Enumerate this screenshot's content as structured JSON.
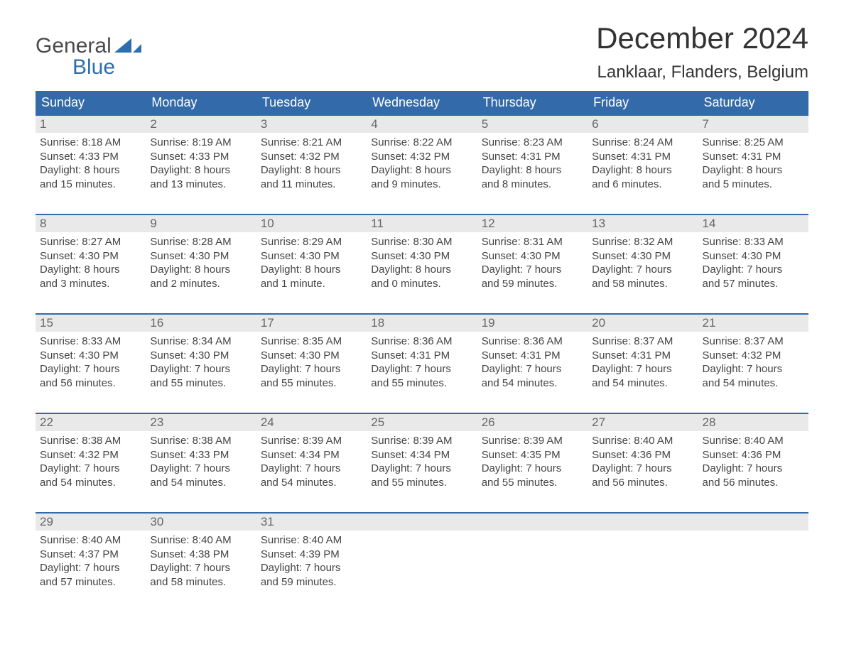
{
  "brand": {
    "top": "General",
    "bottom": "Blue"
  },
  "title": "December 2024",
  "location": "Lanklaar, Flanders, Belgium",
  "colors": {
    "header_bg": "#336aa9",
    "header_text": "#ffffff",
    "daynum_bg": "#e9e9e9",
    "daynum_text": "#666666",
    "body_text": "#444444",
    "logo_blue": "#2e6eb0",
    "week_border": "#336aa9",
    "background": "#ffffff"
  },
  "typography": {
    "title_fontsize": 42,
    "location_fontsize": 24,
    "dow_fontsize": 18,
    "daynum_fontsize": 17,
    "body_fontsize": 15,
    "logo_fontsize": 30
  },
  "days_of_week": [
    "Sunday",
    "Monday",
    "Tuesday",
    "Wednesday",
    "Thursday",
    "Friday",
    "Saturday"
  ],
  "weeks": [
    [
      {
        "n": "1",
        "sunrise": "Sunrise: 8:18 AM",
        "sunset": "Sunset: 4:33 PM",
        "d1": "Daylight: 8 hours",
        "d2": "and 15 minutes."
      },
      {
        "n": "2",
        "sunrise": "Sunrise: 8:19 AM",
        "sunset": "Sunset: 4:33 PM",
        "d1": "Daylight: 8 hours",
        "d2": "and 13 minutes."
      },
      {
        "n": "3",
        "sunrise": "Sunrise: 8:21 AM",
        "sunset": "Sunset: 4:32 PM",
        "d1": "Daylight: 8 hours",
        "d2": "and 11 minutes."
      },
      {
        "n": "4",
        "sunrise": "Sunrise: 8:22 AM",
        "sunset": "Sunset: 4:32 PM",
        "d1": "Daylight: 8 hours",
        "d2": "and 9 minutes."
      },
      {
        "n": "5",
        "sunrise": "Sunrise: 8:23 AM",
        "sunset": "Sunset: 4:31 PM",
        "d1": "Daylight: 8 hours",
        "d2": "and 8 minutes."
      },
      {
        "n": "6",
        "sunrise": "Sunrise: 8:24 AM",
        "sunset": "Sunset: 4:31 PM",
        "d1": "Daylight: 8 hours",
        "d2": "and 6 minutes."
      },
      {
        "n": "7",
        "sunrise": "Sunrise: 8:25 AM",
        "sunset": "Sunset: 4:31 PM",
        "d1": "Daylight: 8 hours",
        "d2": "and 5 minutes."
      }
    ],
    [
      {
        "n": "8",
        "sunrise": "Sunrise: 8:27 AM",
        "sunset": "Sunset: 4:30 PM",
        "d1": "Daylight: 8 hours",
        "d2": "and 3 minutes."
      },
      {
        "n": "9",
        "sunrise": "Sunrise: 8:28 AM",
        "sunset": "Sunset: 4:30 PM",
        "d1": "Daylight: 8 hours",
        "d2": "and 2 minutes."
      },
      {
        "n": "10",
        "sunrise": "Sunrise: 8:29 AM",
        "sunset": "Sunset: 4:30 PM",
        "d1": "Daylight: 8 hours",
        "d2": "and 1 minute."
      },
      {
        "n": "11",
        "sunrise": "Sunrise: 8:30 AM",
        "sunset": "Sunset: 4:30 PM",
        "d1": "Daylight: 8 hours",
        "d2": "and 0 minutes."
      },
      {
        "n": "12",
        "sunrise": "Sunrise: 8:31 AM",
        "sunset": "Sunset: 4:30 PM",
        "d1": "Daylight: 7 hours",
        "d2": "and 59 minutes."
      },
      {
        "n": "13",
        "sunrise": "Sunrise: 8:32 AM",
        "sunset": "Sunset: 4:30 PM",
        "d1": "Daylight: 7 hours",
        "d2": "and 58 minutes."
      },
      {
        "n": "14",
        "sunrise": "Sunrise: 8:33 AM",
        "sunset": "Sunset: 4:30 PM",
        "d1": "Daylight: 7 hours",
        "d2": "and 57 minutes."
      }
    ],
    [
      {
        "n": "15",
        "sunrise": "Sunrise: 8:33 AM",
        "sunset": "Sunset: 4:30 PM",
        "d1": "Daylight: 7 hours",
        "d2": "and 56 minutes."
      },
      {
        "n": "16",
        "sunrise": "Sunrise: 8:34 AM",
        "sunset": "Sunset: 4:30 PM",
        "d1": "Daylight: 7 hours",
        "d2": "and 55 minutes."
      },
      {
        "n": "17",
        "sunrise": "Sunrise: 8:35 AM",
        "sunset": "Sunset: 4:30 PM",
        "d1": "Daylight: 7 hours",
        "d2": "and 55 minutes."
      },
      {
        "n": "18",
        "sunrise": "Sunrise: 8:36 AM",
        "sunset": "Sunset: 4:31 PM",
        "d1": "Daylight: 7 hours",
        "d2": "and 55 minutes."
      },
      {
        "n": "19",
        "sunrise": "Sunrise: 8:36 AM",
        "sunset": "Sunset: 4:31 PM",
        "d1": "Daylight: 7 hours",
        "d2": "and 54 minutes."
      },
      {
        "n": "20",
        "sunrise": "Sunrise: 8:37 AM",
        "sunset": "Sunset: 4:31 PM",
        "d1": "Daylight: 7 hours",
        "d2": "and 54 minutes."
      },
      {
        "n": "21",
        "sunrise": "Sunrise: 8:37 AM",
        "sunset": "Sunset: 4:32 PM",
        "d1": "Daylight: 7 hours",
        "d2": "and 54 minutes."
      }
    ],
    [
      {
        "n": "22",
        "sunrise": "Sunrise: 8:38 AM",
        "sunset": "Sunset: 4:32 PM",
        "d1": "Daylight: 7 hours",
        "d2": "and 54 minutes."
      },
      {
        "n": "23",
        "sunrise": "Sunrise: 8:38 AM",
        "sunset": "Sunset: 4:33 PM",
        "d1": "Daylight: 7 hours",
        "d2": "and 54 minutes."
      },
      {
        "n": "24",
        "sunrise": "Sunrise: 8:39 AM",
        "sunset": "Sunset: 4:34 PM",
        "d1": "Daylight: 7 hours",
        "d2": "and 54 minutes."
      },
      {
        "n": "25",
        "sunrise": "Sunrise: 8:39 AM",
        "sunset": "Sunset: 4:34 PM",
        "d1": "Daylight: 7 hours",
        "d2": "and 55 minutes."
      },
      {
        "n": "26",
        "sunrise": "Sunrise: 8:39 AM",
        "sunset": "Sunset: 4:35 PM",
        "d1": "Daylight: 7 hours",
        "d2": "and 55 minutes."
      },
      {
        "n": "27",
        "sunrise": "Sunrise: 8:40 AM",
        "sunset": "Sunset: 4:36 PM",
        "d1": "Daylight: 7 hours",
        "d2": "and 56 minutes."
      },
      {
        "n": "28",
        "sunrise": "Sunrise: 8:40 AM",
        "sunset": "Sunset: 4:36 PM",
        "d1": "Daylight: 7 hours",
        "d2": "and 56 minutes."
      }
    ],
    [
      {
        "n": "29",
        "sunrise": "Sunrise: 8:40 AM",
        "sunset": "Sunset: 4:37 PM",
        "d1": "Daylight: 7 hours",
        "d2": "and 57 minutes."
      },
      {
        "n": "30",
        "sunrise": "Sunrise: 8:40 AM",
        "sunset": "Sunset: 4:38 PM",
        "d1": "Daylight: 7 hours",
        "d2": "and 58 minutes."
      },
      {
        "n": "31",
        "sunrise": "Sunrise: 8:40 AM",
        "sunset": "Sunset: 4:39 PM",
        "d1": "Daylight: 7 hours",
        "d2": "and 59 minutes."
      },
      {
        "n": "",
        "sunrise": "",
        "sunset": "",
        "d1": "",
        "d2": ""
      },
      {
        "n": "",
        "sunrise": "",
        "sunset": "",
        "d1": "",
        "d2": ""
      },
      {
        "n": "",
        "sunrise": "",
        "sunset": "",
        "d1": "",
        "d2": ""
      },
      {
        "n": "",
        "sunrise": "",
        "sunset": "",
        "d1": "",
        "d2": ""
      }
    ]
  ]
}
